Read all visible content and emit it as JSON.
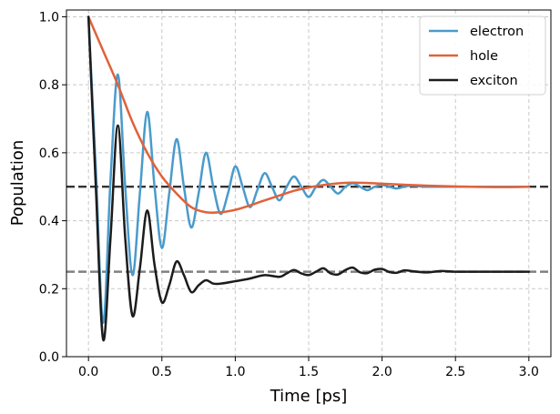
{
  "chart_data": {
    "type": "line",
    "title": "",
    "xlabel": "Time [ps]",
    "ylabel": "Population",
    "xlim": [
      -0.15,
      3.15
    ],
    "ylim": [
      0.0,
      1.02
    ],
    "grid": true,
    "legend_position": "top-right",
    "x_ticks": [
      0.0,
      0.5,
      1.0,
      1.5,
      2.0,
      2.5,
      3.0
    ],
    "x_tick_labels": [
      "0.0",
      "0.5",
      "1.0",
      "1.5",
      "2.0",
      "2.5",
      "3.0"
    ],
    "y_ticks": [
      0.0,
      0.2,
      0.4,
      0.6,
      0.8,
      1.0
    ],
    "y_tick_labels": [
      "0.0",
      "0.2",
      "0.4",
      "0.6",
      "0.8",
      "1.0"
    ],
    "series": [
      {
        "name": "electron",
        "color": "#4a9bcb",
        "x": [
          0.0,
          0.05,
          0.1,
          0.15,
          0.2,
          0.25,
          0.3,
          0.35,
          0.4,
          0.45,
          0.5,
          0.55,
          0.6,
          0.65,
          0.7,
          0.75,
          0.8,
          0.85,
          0.9,
          0.95,
          1.0,
          1.05,
          1.1,
          1.15,
          1.2,
          1.25,
          1.3,
          1.35,
          1.4,
          1.45,
          1.5,
          1.55,
          1.6,
          1.65,
          1.7,
          1.75,
          1.8,
          1.85,
          1.9,
          1.95,
          2.0,
          2.05,
          2.1,
          2.15,
          2.2,
          2.3,
          2.4,
          2.5,
          2.6,
          2.7,
          2.8,
          2.9,
          3.0
        ],
        "y": [
          1.0,
          0.55,
          0.1,
          0.52,
          0.83,
          0.5,
          0.24,
          0.48,
          0.72,
          0.5,
          0.32,
          0.48,
          0.64,
          0.5,
          0.38,
          0.48,
          0.6,
          0.5,
          0.42,
          0.48,
          0.56,
          0.5,
          0.44,
          0.49,
          0.54,
          0.5,
          0.46,
          0.5,
          0.53,
          0.5,
          0.47,
          0.5,
          0.52,
          0.5,
          0.48,
          0.5,
          0.51,
          0.5,
          0.49,
          0.5,
          0.505,
          0.5,
          0.495,
          0.5,
          0.503,
          0.5,
          0.5,
          0.5,
          0.5,
          0.5,
          0.5,
          0.5,
          0.5
        ]
      },
      {
        "name": "hole",
        "color": "#e0623a",
        "x": [
          0.0,
          0.1,
          0.2,
          0.3,
          0.4,
          0.5,
          0.6,
          0.7,
          0.8,
          0.9,
          1.0,
          1.1,
          1.2,
          1.3,
          1.4,
          1.5,
          1.6,
          1.7,
          1.8,
          1.9,
          2.0,
          2.2,
          2.4,
          2.6,
          2.8,
          3.0
        ],
        "y": [
          1.0,
          0.9,
          0.8,
          0.69,
          0.6,
          0.53,
          0.48,
          0.44,
          0.425,
          0.425,
          0.432,
          0.445,
          0.46,
          0.474,
          0.488,
          0.498,
          0.505,
          0.51,
          0.512,
          0.511,
          0.509,
          0.505,
          0.502,
          0.5,
          0.499,
          0.5
        ]
      },
      {
        "name": "exciton",
        "color": "#1c1c1c",
        "x": [
          0.0,
          0.05,
          0.1,
          0.15,
          0.2,
          0.25,
          0.3,
          0.35,
          0.4,
          0.45,
          0.5,
          0.55,
          0.6,
          0.65,
          0.7,
          0.75,
          0.8,
          0.85,
          0.9,
          1.0,
          1.1,
          1.2,
          1.3,
          1.35,
          1.4,
          1.45,
          1.5,
          1.55,
          1.6,
          1.65,
          1.7,
          1.75,
          1.8,
          1.85,
          1.9,
          1.95,
          2.0,
          2.05,
          2.1,
          2.15,
          2.2,
          2.3,
          2.4,
          2.5,
          2.6,
          2.7,
          2.8,
          2.9,
          3.0
        ],
        "y": [
          1.0,
          0.5,
          0.05,
          0.35,
          0.68,
          0.35,
          0.12,
          0.26,
          0.43,
          0.27,
          0.16,
          0.21,
          0.28,
          0.24,
          0.19,
          0.21,
          0.225,
          0.215,
          0.215,
          0.222,
          0.23,
          0.24,
          0.235,
          0.245,
          0.255,
          0.245,
          0.24,
          0.25,
          0.26,
          0.245,
          0.242,
          0.255,
          0.262,
          0.248,
          0.246,
          0.256,
          0.258,
          0.249,
          0.247,
          0.254,
          0.252,
          0.248,
          0.252,
          0.25,
          0.25,
          0.25,
          0.25,
          0.25,
          0.25
        ]
      }
    ],
    "reference_lines": [
      {
        "y": 0.5,
        "color": "#333333",
        "style": "dashed"
      },
      {
        "y": 0.25,
        "color": "#808080",
        "style": "dashed"
      }
    ]
  }
}
